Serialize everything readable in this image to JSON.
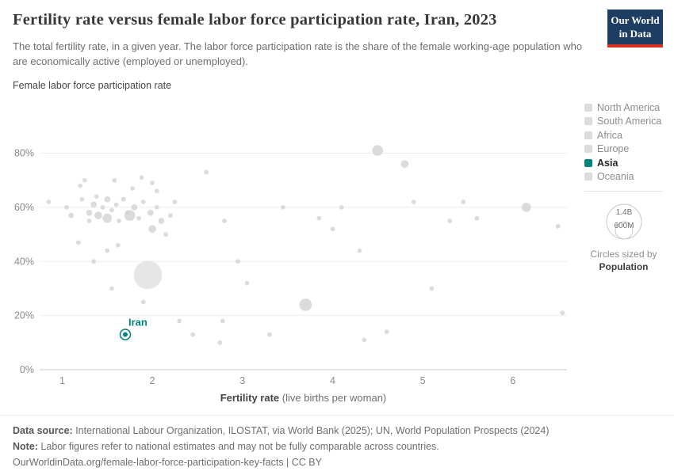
{
  "header": {
    "title": "Fertility rate versus female labor force participation rate, Iran, 2023",
    "subtitle": "The total fertility rate, in a given year. The labor force participation rate is the share of the female working-age population who are economically active (employed or unemployed).",
    "logo_line1": "Our World",
    "logo_line2": "in Data"
  },
  "legend": {
    "items": [
      {
        "label": "North America",
        "color": "#dcdcdc",
        "selected": false
      },
      {
        "label": "South America",
        "color": "#dcdcdc",
        "selected": false
      },
      {
        "label": "Africa",
        "color": "#dcdcdc",
        "selected": false
      },
      {
        "label": "Europe",
        "color": "#dcdcdc",
        "selected": false
      },
      {
        "label": "Asia",
        "color": "#00847e",
        "selected": true
      },
      {
        "label": "Oceania",
        "color": "#dcdcdc",
        "selected": false
      }
    ],
    "size_legend": {
      "outer_label": "1.4B",
      "inner_label": "600M",
      "caption": "Circles sized by",
      "caption_bold": "Population"
    }
  },
  "chart_data": {
    "type": "scatter",
    "title": "Fertility rate versus female labor force participation rate, Iran, 2023",
    "xlabel": "Fertility rate (live births per woman)",
    "xlabel_bold": "Fertility rate",
    "xlabel_rest": " (live births per woman)",
    "ylabel": "Female labor force participation rate",
    "x_ticks": [
      1,
      2,
      3,
      4,
      5,
      6
    ],
    "y_ticks": [
      0,
      20,
      40,
      60,
      80
    ],
    "y_tick_suffix": "%",
    "xlim": [
      0.75,
      6.6
    ],
    "ylim": [
      0,
      98
    ],
    "grid": true,
    "legend_position": "right",
    "point_color": "#d2d2d2",
    "highlight": {
      "label": "Iran",
      "x": 1.7,
      "y": 13,
      "color": "#00847e"
    },
    "points": [
      [
        0.85,
        62,
        3
      ],
      [
        1.05,
        60,
        3
      ],
      [
        1.1,
        57,
        3.5
      ],
      [
        1.18,
        47,
        3
      ],
      [
        1.2,
        68,
        3
      ],
      [
        1.22,
        63,
        3
      ],
      [
        1.25,
        70,
        3
      ],
      [
        1.3,
        58,
        4
      ],
      [
        1.3,
        55,
        3
      ],
      [
        1.35,
        61,
        4
      ],
      [
        1.38,
        64,
        3
      ],
      [
        1.4,
        57,
        5
      ],
      [
        1.45,
        60,
        3
      ],
      [
        1.5,
        63,
        4
      ],
      [
        1.5,
        56,
        6
      ],
      [
        1.55,
        59,
        3
      ],
      [
        1.58,
        70,
        3
      ],
      [
        1.6,
        61,
        3
      ],
      [
        1.63,
        55,
        3
      ],
      [
        1.68,
        63,
        3
      ],
      [
        1.72,
        58,
        3
      ],
      [
        1.75,
        57,
        7
      ],
      [
        1.78,
        67,
        3
      ],
      [
        1.8,
        60,
        4
      ],
      [
        1.85,
        56,
        3
      ],
      [
        1.88,
        71,
        3
      ],
      [
        1.9,
        62,
        3
      ],
      [
        1.95,
        35,
        18
      ],
      [
        1.98,
        58,
        4
      ],
      [
        2.0,
        52,
        5
      ],
      [
        2.0,
        69,
        3
      ],
      [
        2.05,
        66,
        3
      ],
      [
        2.05,
        60,
        3
      ],
      [
        2.1,
        55,
        4
      ],
      [
        2.15,
        50,
        3
      ],
      [
        2.2,
        57,
        3
      ],
      [
        2.25,
        62,
        3
      ],
      [
        1.35,
        40,
        3
      ],
      [
        1.55,
        30,
        3
      ],
      [
        1.5,
        44,
        3
      ],
      [
        1.62,
        46,
        3
      ],
      [
        1.9,
        25,
        3
      ],
      [
        2.3,
        18,
        3
      ],
      [
        2.45,
        13,
        3
      ],
      [
        2.6,
        73,
        3
      ],
      [
        2.75,
        10,
        3
      ],
      [
        2.78,
        18,
        3
      ],
      [
        2.8,
        55,
        3
      ],
      [
        2.95,
        40,
        3
      ],
      [
        3.05,
        32,
        3
      ],
      [
        3.3,
        13,
        3
      ],
      [
        3.45,
        60,
        3
      ],
      [
        3.7,
        24,
        8
      ],
      [
        3.85,
        56,
        3
      ],
      [
        4.0,
        52,
        3
      ],
      [
        4.1,
        60,
        3
      ],
      [
        4.3,
        44,
        3
      ],
      [
        4.35,
        11,
        3
      ],
      [
        4.5,
        81,
        7
      ],
      [
        4.6,
        14,
        3
      ],
      [
        4.8,
        76,
        5
      ],
      [
        4.9,
        62,
        3
      ],
      [
        5.1,
        30,
        3
      ],
      [
        5.3,
        55,
        3
      ],
      [
        5.45,
        62,
        3
      ],
      [
        5.6,
        56,
        3
      ],
      [
        6.15,
        60,
        6
      ],
      [
        6.5,
        53,
        3
      ],
      [
        6.55,
        21,
        3
      ]
    ]
  },
  "footer": {
    "source_label": "Data source:",
    "source_text": " International Labour Organization, ILOSTAT, via World Bank (2025); UN, World Population Prospects (2024)",
    "note_label": "Note:",
    "note_text": " Labor figures refer to national estimates and may not be fully comparable across countries.",
    "url": "OurWorldinData.org/female-labor-force-participation-key-facts",
    "license": " | CC BY"
  }
}
